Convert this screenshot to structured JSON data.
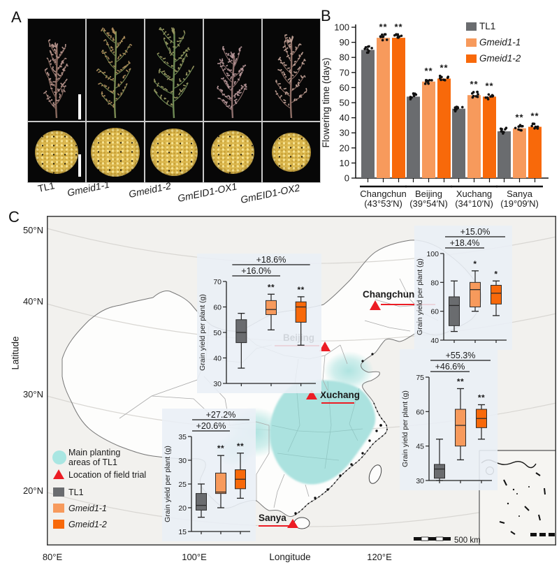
{
  "figure": {
    "panel_a_label": "A",
    "panel_b_label": "B",
    "panel_c_label": "C"
  },
  "panel_a": {
    "genotypes": [
      "TL1",
      "Gmeid1-1",
      "Gmeid1-2",
      "GmEID1-OX1",
      "GmEID1-OX2"
    ]
  },
  "panel_b": {
    "chart_data": {
      "type": "bar",
      "title": "",
      "categories": [
        "Changchun",
        "Beijing",
        "Xuchang",
        "Sanya"
      ],
      "category_sublabels": [
        "(43°53′N)",
        "(39°54′N)",
        "(34°10′N)",
        "(19°09′N)"
      ],
      "series": [
        {
          "name": "TL1",
          "color": "#6A6C6F",
          "italic": false,
          "values": [
            85,
            54,
            46,
            31
          ]
        },
        {
          "name": "Gmeid1-1",
          "color": "#F79A5C",
          "italic": true,
          "values": [
            93,
            64,
            55,
            33
          ]
        },
        {
          "name": "Gmeid1-2",
          "color": "#F8690A",
          "italic": true,
          "values": [
            93,
            66,
            54,
            34
          ]
        }
      ],
      "significance": [
        [
          "",
          "**",
          "**"
        ],
        [
          "",
          "**",
          "**"
        ],
        [
          "",
          "**",
          "**"
        ],
        [
          "",
          "**",
          "**"
        ]
      ],
      "ylabel": "Flowering time (days)",
      "ylim": [
        0,
        100
      ],
      "ytick_step": 10,
      "legend_position": "top-right",
      "points_overlay": "jittered black dots on each bar"
    }
  },
  "panel_c": {
    "xlabel": "Longitude",
    "ylabel": "Latitude",
    "lon_ticks": [
      "80°E",
      "100°E",
      "120°E"
    ],
    "lat_ticks": [
      "50°N",
      "40°N",
      "30°N",
      "20°N"
    ],
    "scalebar_label": "500 km",
    "colors": {
      "planting_area": "#ABE2DF",
      "trial_marker": "#EC1C24",
      "map_bg": "#F2F1EE"
    },
    "legend": [
      {
        "line1": "Main planting",
        "line2": "areas of TL1",
        "marker": "circle",
        "color": "#A9E6E2",
        "italic": false
      },
      {
        "label": "Location of field trial",
        "marker": "triangle",
        "color": "#EC1C24",
        "italic": false
      },
      {
        "label": "TL1",
        "marker": "square",
        "color": "#6A6C6F",
        "italic": false
      },
      {
        "label": "Gmeid1-1",
        "marker": "square",
        "color": "#F79A5C",
        "italic": true
      },
      {
        "label": "Gmeid1-2",
        "marker": "square",
        "color": "#F8690A",
        "italic": true
      }
    ],
    "cities": [
      "Changchun",
      "Beijing",
      "Xuchang",
      "Sanya"
    ],
    "chart_data": [
      {
        "id": "changchun",
        "city": "Changchun",
        "type": "box",
        "ylabel": "Grain yield per plant (g)",
        "ylim": [
          40,
          100
        ],
        "yticks": [
          40,
          60,
          80,
          100
        ],
        "annotations": [
          {
            "text": "+18.4%",
            "span": [
              0,
              1
            ]
          },
          {
            "text": "+15.0%",
            "span": [
              0,
              2
            ]
          }
        ],
        "significance": [
          "",
          "*",
          "*"
        ],
        "series": [
          {
            "name": "TL1",
            "whislo": 46,
            "q1": 50,
            "med": 64,
            "q3": 70,
            "whishi": 81
          },
          {
            "name": "Gmeid1-1",
            "whislo": 60,
            "q1": 63,
            "med": 75,
            "q3": 80,
            "whishi": 88
          },
          {
            "name": "Gmeid1-2",
            "whislo": 57,
            "q1": 65,
            "med": 72.5,
            "q3": 78,
            "whishi": 81
          }
        ]
      },
      {
        "id": "beijing",
        "city": "Beijing",
        "type": "box",
        "ylabel": "Grain yield per plant (g)",
        "ylim": [
          30,
          70
        ],
        "yticks": [
          30,
          40,
          50,
          60,
          70
        ],
        "annotations": [
          {
            "text": "+16.0%",
            "span": [
              0,
              1
            ]
          },
          {
            "text": "+18.6%",
            "span": [
              0,
              2
            ]
          }
        ],
        "significance": [
          "",
          "**",
          "**"
        ],
        "series": [
          {
            "name": "TL1",
            "whislo": 36,
            "q1": 46,
            "med": 50,
            "q3": 55,
            "whishi": 57.5
          },
          {
            "name": "Gmeid1-1",
            "whislo": 51,
            "q1": 57,
            "med": 59,
            "q3": 62.5,
            "whishi": 65
          },
          {
            "name": "Gmeid1-2",
            "whislo": 45,
            "q1": 54,
            "med": 60,
            "q3": 62,
            "whishi": 64
          }
        ]
      },
      {
        "id": "xuchang",
        "city": "Xuchang",
        "type": "box",
        "ylabel": "Grain yield per plant (g)",
        "ylim": [
          30,
          75
        ],
        "yticks": [
          30,
          45,
          60,
          75
        ],
        "annotations": [
          {
            "text": "+46.6%",
            "span": [
              0,
              1
            ]
          },
          {
            "text": "+55.3%",
            "span": [
              0,
              2
            ]
          }
        ],
        "significance": [
          "",
          "**",
          "**"
        ],
        "series": [
          {
            "name": "TL1",
            "whislo": 30,
            "q1": 31,
            "med": 35,
            "q3": 37,
            "whishi": 48
          },
          {
            "name": "Gmeid1-1",
            "whislo": 39,
            "q1": 45,
            "med": 54,
            "q3": 61,
            "whishi": 70
          },
          {
            "name": "Gmeid1-2",
            "whislo": 48,
            "q1": 53,
            "med": 57,
            "q3": 61,
            "whishi": 63
          }
        ]
      },
      {
        "id": "sanya",
        "city": "Sanya",
        "type": "box",
        "ylabel": "Grain yield per plant (g)",
        "ylim": [
          15,
          35
        ],
        "yticks": [
          15,
          20,
          25,
          30,
          35
        ],
        "annotations": [
          {
            "text": "+20.6%",
            "span": [
              0,
              1
            ]
          },
          {
            "text": "+27.2%",
            "span": [
              0,
              2
            ]
          }
        ],
        "significance": [
          "",
          "**",
          "**"
        ],
        "series": [
          {
            "name": "TL1",
            "whislo": 18,
            "q1": 19.5,
            "med": 20.5,
            "q3": 23,
            "whishi": 25
          },
          {
            "name": "Gmeid1-1",
            "whislo": 20,
            "q1": 23,
            "med": 23.3,
            "q3": 27.3,
            "whishi": 31
          },
          {
            "name": "Gmeid1-2",
            "whislo": 22,
            "q1": 24,
            "med": 26,
            "q3": 28,
            "whishi": 31.5
          }
        ]
      }
    ]
  }
}
